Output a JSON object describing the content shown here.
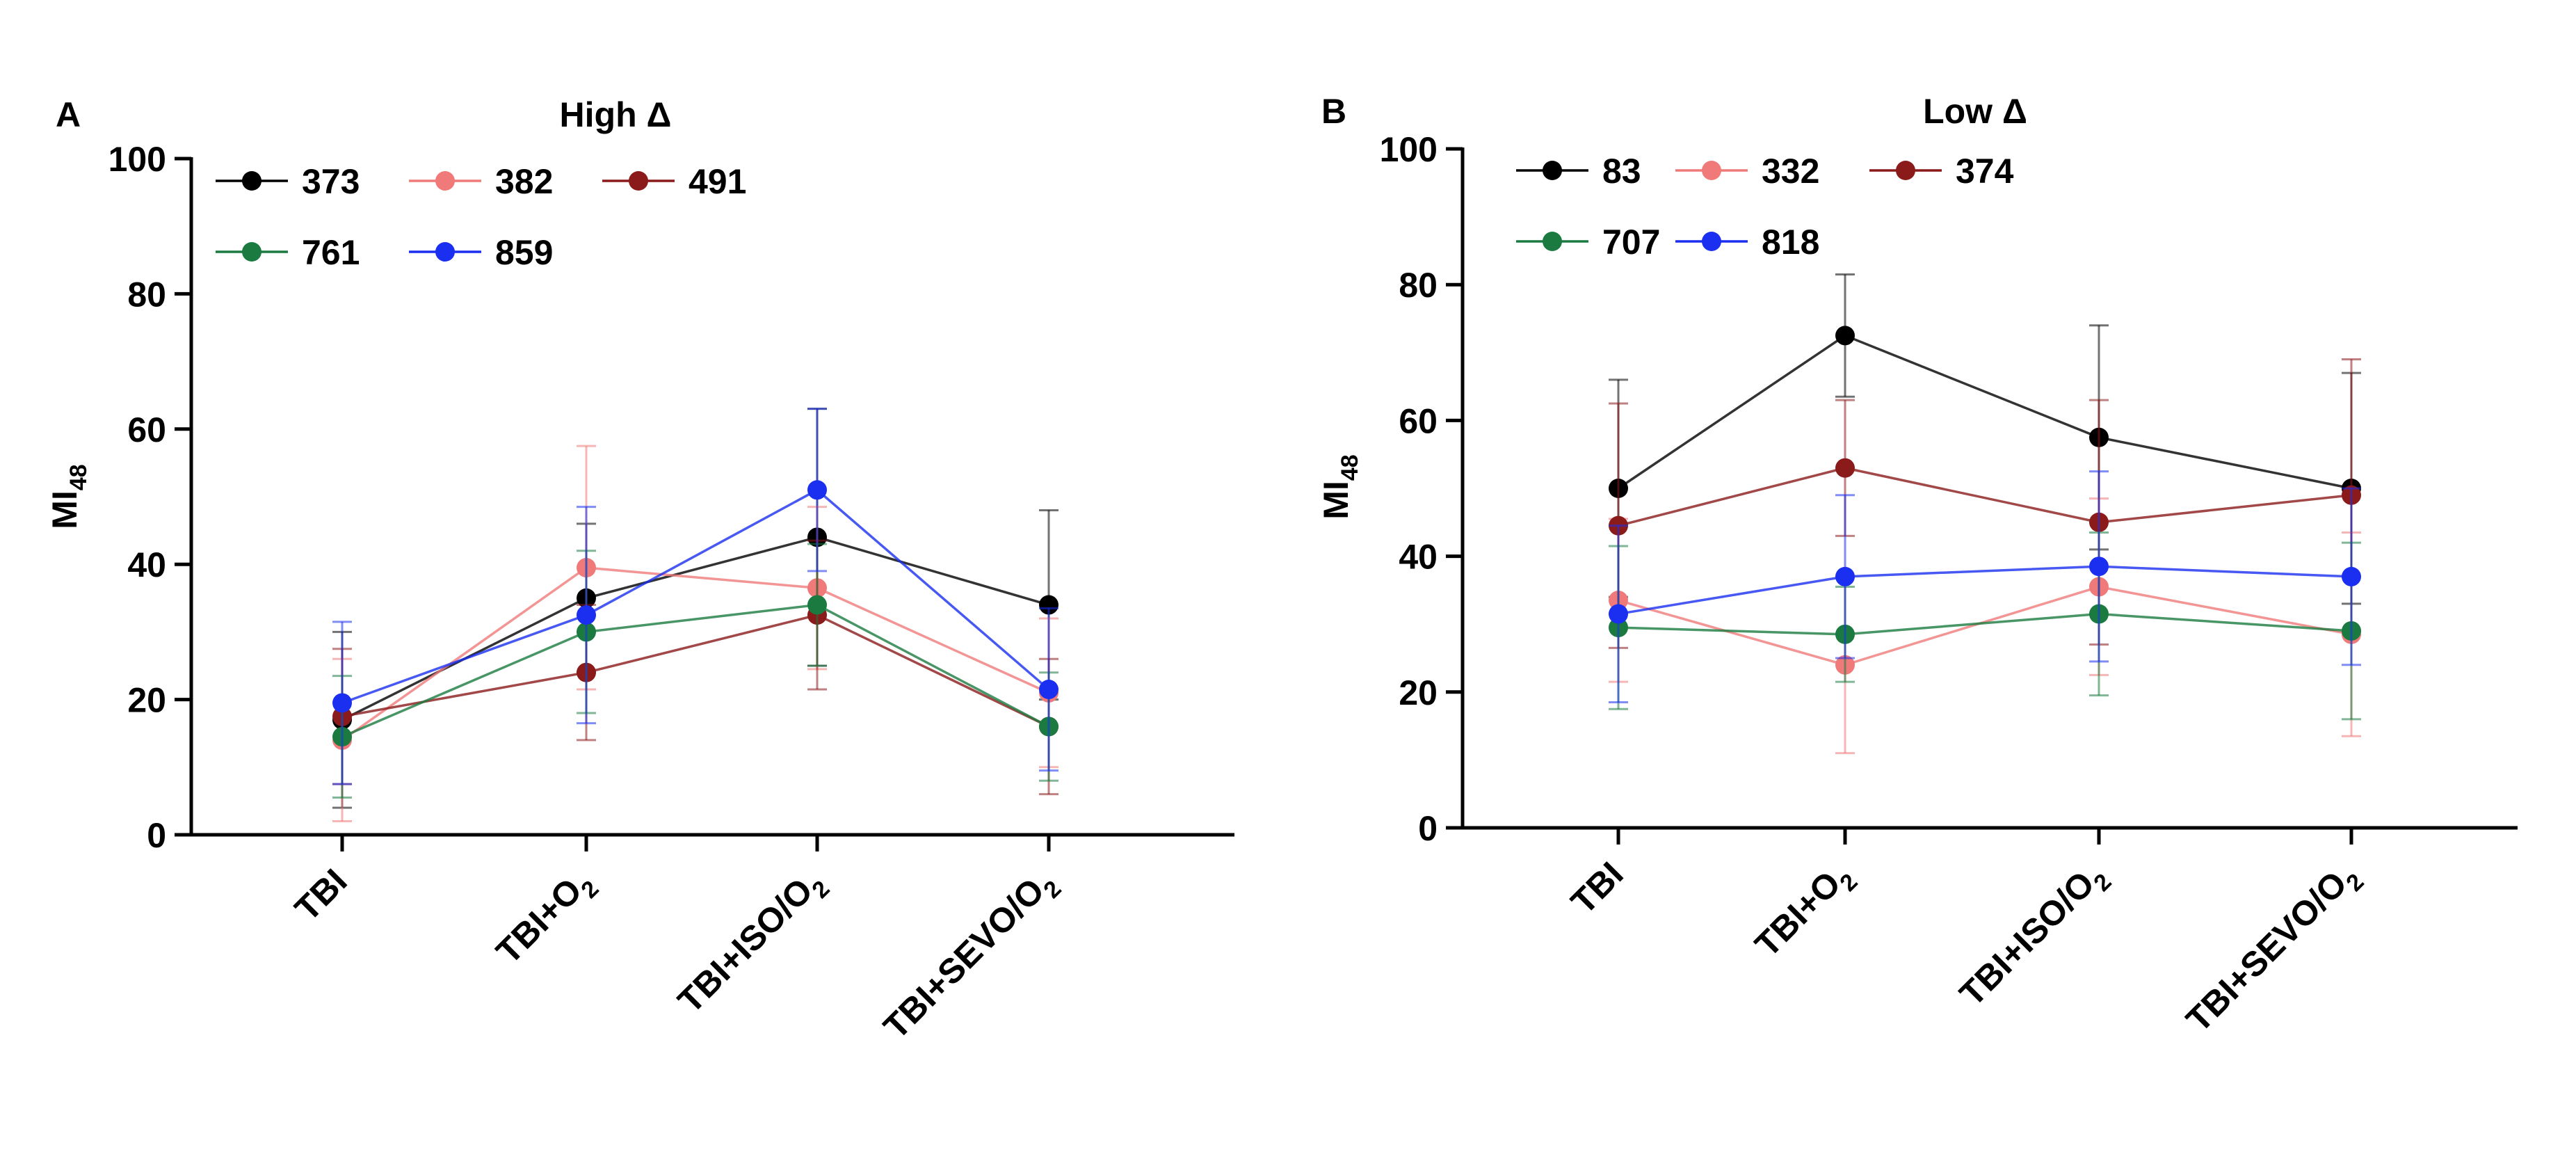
{
  "chart_data": [
    {
      "panel_label": "A",
      "title": "High Δ",
      "type": "line",
      "ylabel_main": "MI",
      "ylabel_sub": "48",
      "xlabel": "",
      "ylim": [
        0,
        100
      ],
      "yticks": [
        "0",
        "20",
        "40",
        "60",
        "80",
        "100"
      ],
      "categories": [
        {
          "main": "TBI",
          "sub": "",
          "tail": ""
        },
        {
          "main": "TBI+O",
          "sub": "2",
          "tail": ""
        },
        {
          "main": "TBI+ISO/O",
          "sub": "2",
          "tail": ""
        },
        {
          "main": "TBI+SEVO/O",
          "sub": "2",
          "tail": ""
        }
      ],
      "legend_rows": [
        [
          "373",
          "382",
          "491"
        ],
        [
          "761",
          "859"
        ]
      ],
      "series": [
        {
          "name": "373",
          "color": "#000000",
          "values": [
            17,
            35,
            44,
            34
          ],
          "err": [
            13,
            11,
            19,
            14
          ]
        },
        {
          "name": "382",
          "color": "#f07a7a",
          "values": [
            14,
            39.5,
            36.5,
            21
          ],
          "err": [
            12,
            18,
            12,
            11
          ]
        },
        {
          "name": "491",
          "color": "#8b1a1a",
          "values": [
            17.5,
            24,
            32.5,
            16
          ],
          "err": [
            10,
            10,
            11,
            10
          ]
        },
        {
          "name": "761",
          "color": "#1a7a40",
          "values": [
            14.5,
            30,
            34,
            16
          ],
          "err": [
            9,
            12,
            9,
            8
          ]
        },
        {
          "name": "859",
          "color": "#1a2ff0",
          "values": [
            19.5,
            32.5,
            51,
            21.5
          ],
          "err": [
            12,
            16,
            12,
            12
          ]
        }
      ]
    },
    {
      "panel_label": "B",
      "title": "Low Δ",
      "type": "line",
      "ylabel_main": "MI",
      "ylabel_sub": "48",
      "xlabel": "",
      "ylim": [
        0,
        100
      ],
      "yticks": [
        "0",
        "20",
        "40",
        "60",
        "80",
        "100"
      ],
      "categories": [
        {
          "main": "TBI",
          "sub": "",
          "tail": ""
        },
        {
          "main": "TBI+O",
          "sub": "2",
          "tail": ""
        },
        {
          "main": "TBI+ISO/O",
          "sub": "2",
          "tail": ""
        },
        {
          "main": "TBI+SEVO/O",
          "sub": "2",
          "tail": ""
        }
      ],
      "legend_rows": [
        [
          "83",
          "332",
          "374"
        ],
        [
          "707",
          "818"
        ]
      ],
      "series": [
        {
          "name": "83",
          "color": "#000000",
          "values": [
            50,
            72.5,
            57.5,
            50
          ],
          "err": [
            16,
            9,
            16.5,
            17
          ]
        },
        {
          "name": "332",
          "color": "#f07a7a",
          "values": [
            33.5,
            24,
            35.5,
            28.5
          ],
          "err": [
            12,
            13,
            13,
            15
          ]
        },
        {
          "name": "374",
          "color": "#8b1a1a",
          "values": [
            44.5,
            53,
            45,
            49
          ],
          "err": [
            18,
            10,
            18,
            20
          ]
        },
        {
          "name": "707",
          "color": "#1a7a40",
          "values": [
            29.5,
            28.5,
            31.5,
            29
          ],
          "err": [
            12,
            7,
            12,
            13
          ]
        },
        {
          "name": "818",
          "color": "#1a2ff0",
          "values": [
            31.5,
            37,
            38.5,
            37
          ],
          "err": [
            13,
            12,
            14,
            13
          ]
        }
      ]
    }
  ]
}
